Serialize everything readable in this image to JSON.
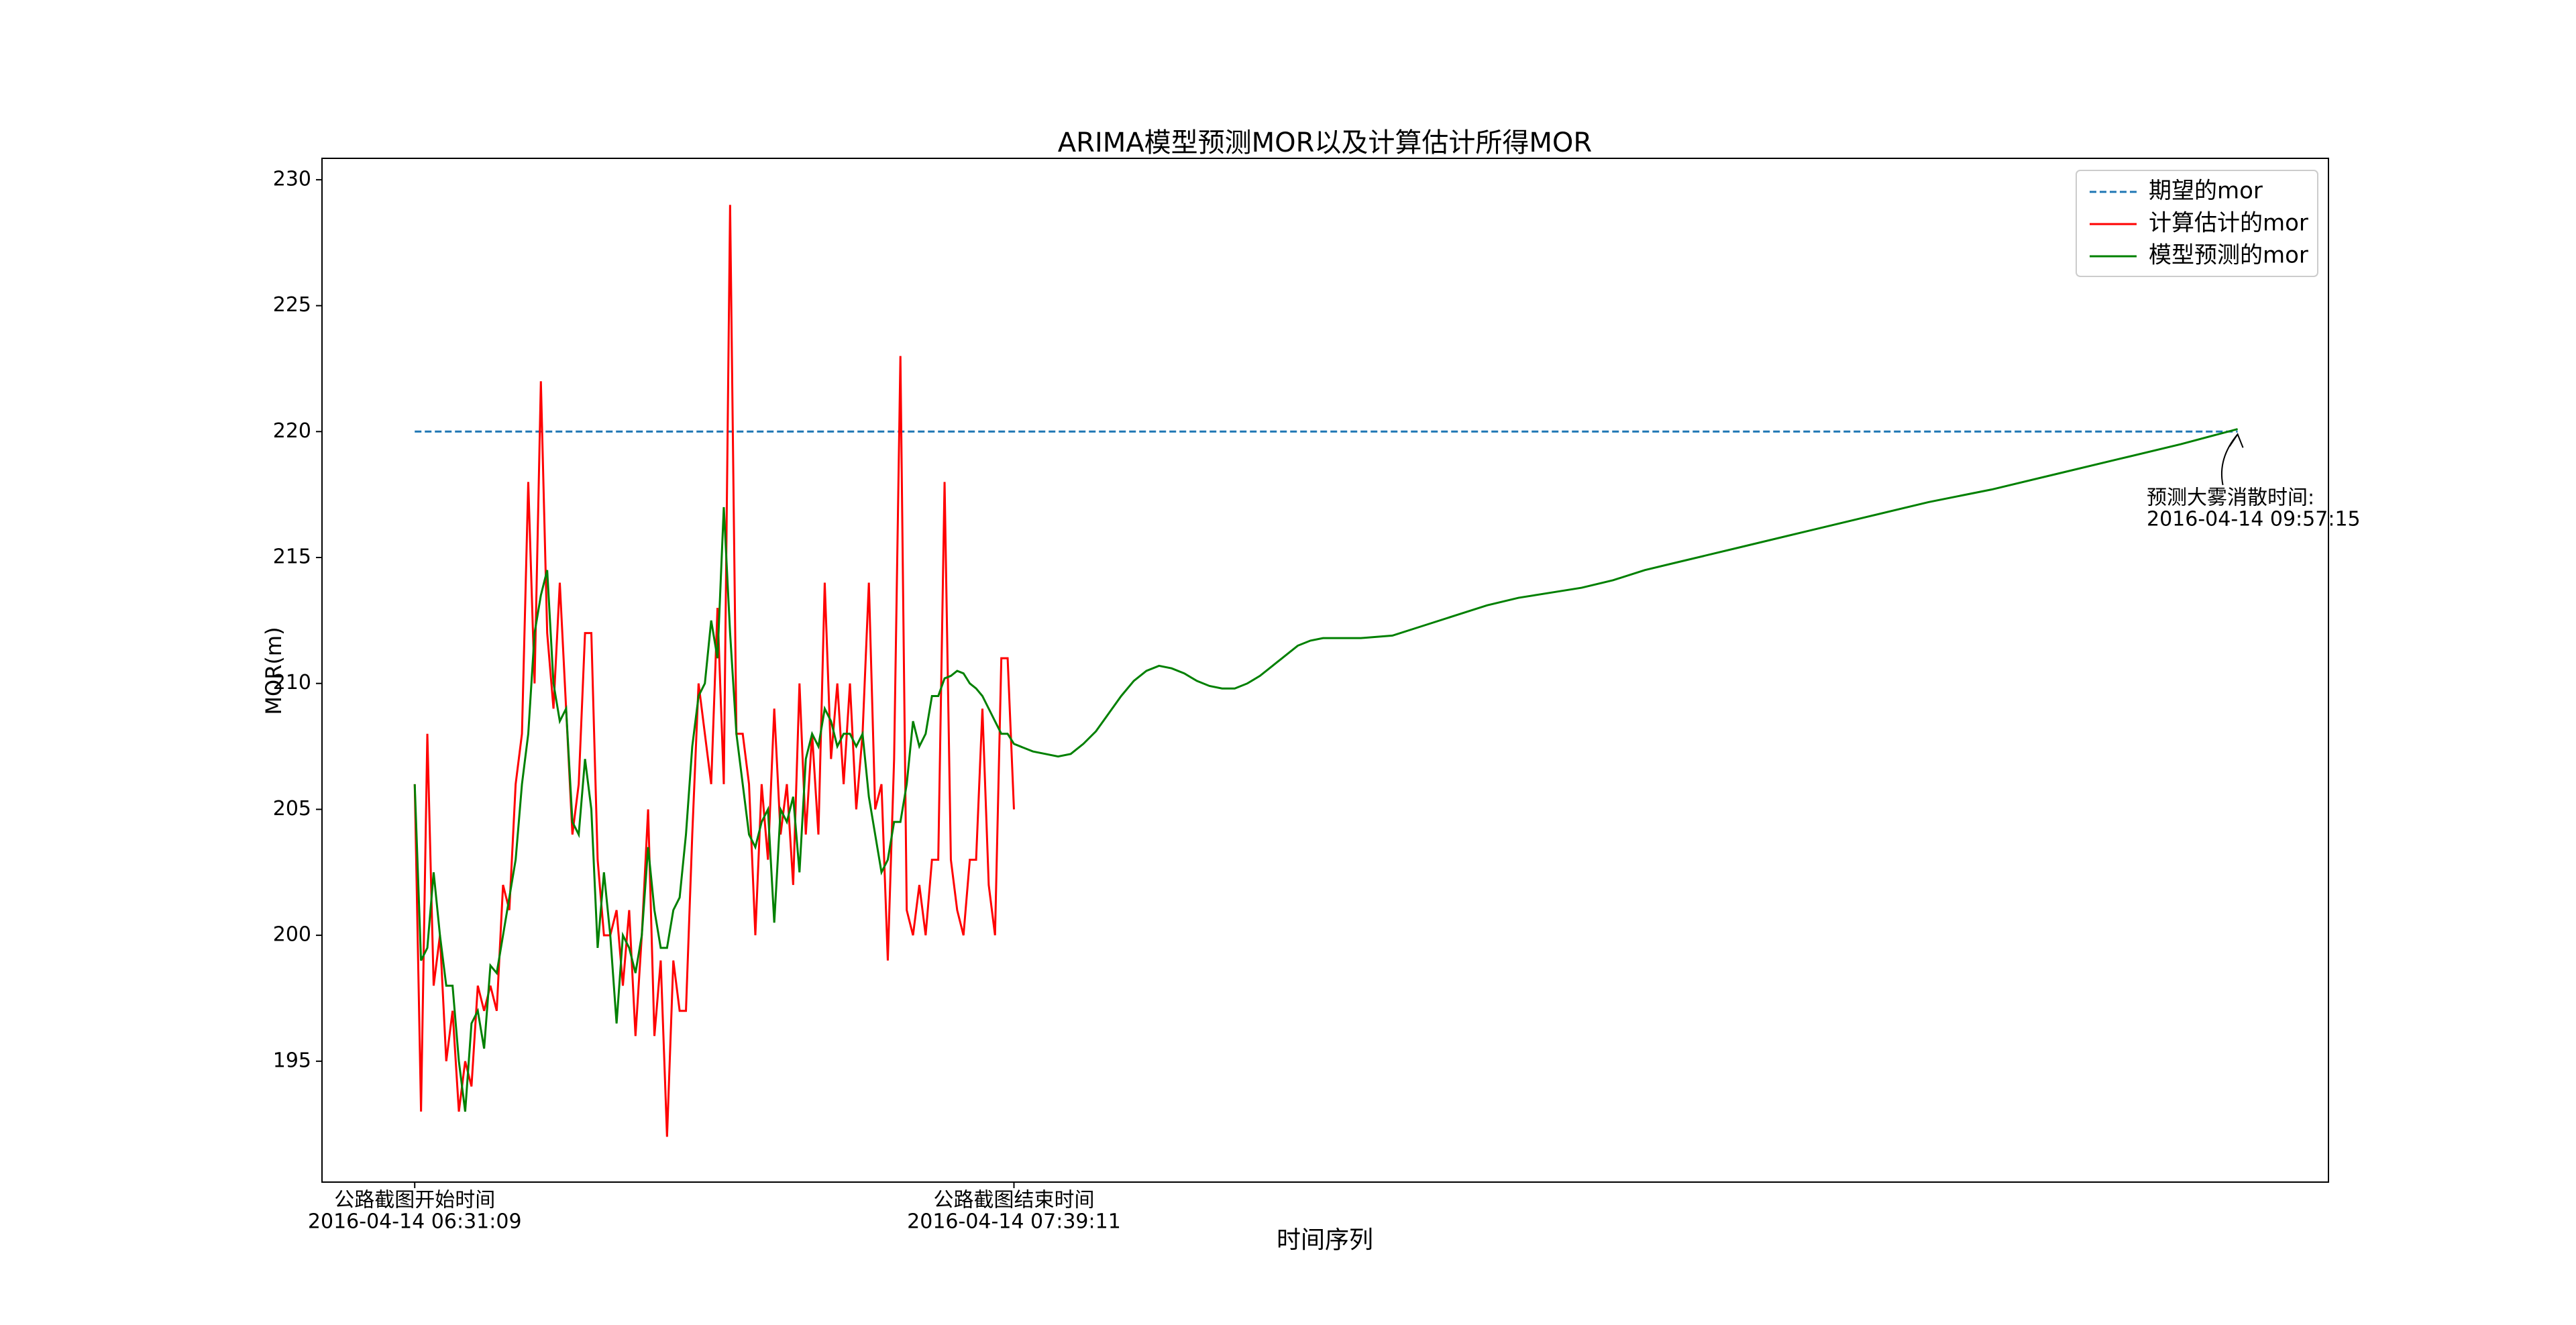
{
  "chart_data": {
    "type": "line",
    "title": "ARIMA模型预测MOR以及计算估计所得MOR",
    "xlabel": "时间序列",
    "ylabel": "MOR(m)",
    "xlim": [
      -14.7,
      303.4
    ],
    "ylim": [
      190.2,
      230.85
    ],
    "yticks": [
      195,
      200,
      205,
      210,
      215,
      220,
      225,
      230
    ],
    "xticks": [
      {
        "value": 0,
        "label": [
          "公路截图开始时间",
          "2016-04-14 06:31:09"
        ]
      },
      {
        "value": 95,
        "label": [
          "公路截图结束时间",
          "2016-04-14 07:39:11"
        ]
      }
    ],
    "legend": "upper right",
    "grid": false,
    "series": [
      {
        "name": "期望的mor",
        "color": "#1f77b4",
        "dashed": true,
        "x": [
          0,
          289
        ],
        "values": [
          220,
          220
        ]
      },
      {
        "name": "计算估计的mor",
        "color": "#ff0000",
        "x": [
          0,
          1,
          2,
          3,
          4,
          5,
          6,
          7,
          8,
          9,
          10,
          11,
          12,
          13,
          14,
          15,
          16,
          17,
          18,
          19,
          20,
          21,
          22,
          23,
          24,
          25,
          26,
          27,
          28,
          29,
          30,
          31,
          32,
          33,
          34,
          35,
          36,
          37,
          38,
          39,
          40,
          41,
          42,
          43,
          44,
          45,
          46,
          47,
          48,
          49,
          50,
          51,
          52,
          53,
          54,
          55,
          56,
          57,
          58,
          59,
          60,
          61,
          62,
          63,
          64,
          65,
          66,
          67,
          68,
          69,
          70,
          71,
          72,
          73,
          74,
          75,
          76,
          77,
          78,
          79,
          80,
          81,
          82,
          83,
          84,
          85,
          86,
          87,
          88,
          89,
          90,
          91,
          92,
          93,
          94,
          95
        ],
        "values": [
          206,
          193,
          208,
          198,
          200,
          195,
          197,
          193,
          195,
          194,
          198,
          197,
          198,
          197,
          202,
          201,
          206,
          208,
          218,
          210,
          222,
          212,
          209,
          214,
          209,
          204,
          206,
          212,
          212,
          203,
          200,
          200,
          201,
          198,
          201,
          196,
          200,
          205,
          196,
          199,
          192,
          199,
          197,
          197,
          204,
          210,
          208,
          206,
          213,
          206,
          229,
          208,
          208,
          206,
          200,
          206,
          203,
          209,
          204,
          206,
          202,
          210,
          204,
          208,
          204,
          214,
          207,
          210,
          206,
          210,
          205,
          208,
          214,
          205,
          206,
          199,
          207,
          223,
          201,
          200,
          202,
          200,
          203,
          203,
          218,
          203,
          201,
          200,
          203,
          203,
          209,
          202,
          200,
          211,
          211,
          205
        ]
      },
      {
        "name": "模型预测的mor",
        "color": "#008000",
        "x": [
          0,
          1,
          2,
          3,
          4,
          5,
          6,
          7,
          8,
          9,
          10,
          11,
          12,
          13,
          14,
          15,
          16,
          17,
          18,
          19,
          20,
          21,
          22,
          23,
          24,
          25,
          26,
          27,
          28,
          29,
          30,
          31,
          32,
          33,
          34,
          35,
          36,
          37,
          38,
          39,
          40,
          41,
          42,
          43,
          44,
          45,
          46,
          47,
          48,
          49,
          50,
          51,
          52,
          53,
          54,
          55,
          56,
          57,
          58,
          59,
          60,
          61,
          62,
          63,
          64,
          65,
          66,
          67,
          68,
          69,
          70,
          71,
          72,
          73,
          74,
          75,
          76,
          77,
          78,
          79,
          80,
          81,
          82,
          83,
          84,
          85,
          86,
          87,
          88,
          89,
          90,
          91,
          92,
          93,
          94,
          95,
          96,
          98,
          100,
          102,
          104,
          106,
          108,
          110,
          112,
          114,
          116,
          118,
          120,
          122,
          124,
          126,
          128,
          130,
          132,
          134,
          136,
          138,
          140,
          142,
          144,
          146,
          148,
          150,
          155,
          160,
          165,
          170,
          175,
          180,
          185,
          190,
          195,
          200,
          210,
          220,
          230,
          240,
          250,
          260,
          270,
          280,
          289
        ],
        "values": [
          206,
          199,
          199.5,
          202.5,
          200,
          198,
          198,
          195,
          193,
          196.5,
          197,
          195.5,
          198.8,
          198.5,
          200,
          201.5,
          203,
          206,
          208,
          212,
          213.5,
          214.5,
          210,
          208.5,
          209,
          204.5,
          204,
          207,
          205,
          199.5,
          202.5,
          200,
          196.5,
          200,
          199.5,
          198.5,
          200,
          203.5,
          201,
          199.5,
          199.5,
          201,
          201.5,
          204,
          207.5,
          209.5,
          210,
          212.5,
          211,
          217,
          212,
          208,
          206,
          204,
          203.5,
          204.5,
          205,
          200.5,
          205,
          204.5,
          205.5,
          202.5,
          207,
          208,
          207.5,
          209,
          208.5,
          207.5,
          208,
          208,
          207.5,
          208,
          205.5,
          204,
          202.5,
          203,
          204.5,
          204.5,
          206,
          208.5,
          207.5,
          208,
          209.5,
          209.5,
          210.2,
          210.3,
          210.5,
          210.4,
          210,
          209.8,
          209.5,
          209,
          208.5,
          208,
          208,
          207.6,
          207.5,
          207.3,
          207.2,
          207.1,
          207.2,
          207.6,
          208.1,
          208.8,
          209.5,
          210.1,
          210.5,
          210.7,
          210.6,
          210.4,
          210.1,
          209.9,
          209.8,
          209.8,
          210,
          210.3,
          210.7,
          211.1,
          211.5,
          211.7,
          211.8,
          211.8,
          211.8,
          211.8,
          211.9,
          212.3,
          212.7,
          213.1,
          213.4,
          213.6,
          213.8,
          214.1,
          214.5,
          214.8,
          215.4,
          216,
          216.6,
          217.2,
          217.7,
          218.3,
          218.9,
          219.5,
          220.1
        ]
      }
    ],
    "annotation": {
      "text": [
        "预测大雾消散时间:",
        "2016-04-14 09:57:15"
      ],
      "xy": [
        289,
        220
      ]
    }
  }
}
